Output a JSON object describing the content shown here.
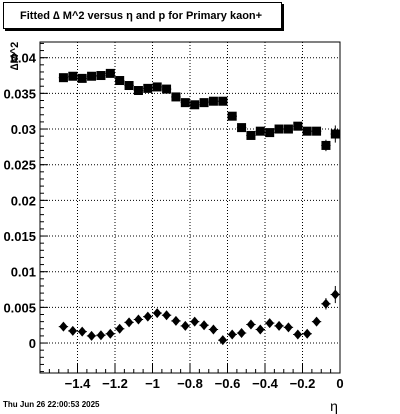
{
  "title": "Fitted ∆ M^2 versus η and p for Primary kaon+",
  "footer": "Thu Jun 26 22:00:53 2025",
  "chart_data": {
    "type": "scatter",
    "title": "Fitted ∆ M^2 versus η and p for Primary kaon+",
    "xlabel": "η",
    "ylabel": "∆M^2",
    "xlim": [
      -1.6,
      0
    ],
    "ylim": [
      -0.0042,
      0.0422
    ],
    "grid": true,
    "x_ticks": [
      -1.4,
      -1.2,
      -1,
      -0.8,
      -0.6,
      -0.4,
      -0.2,
      0
    ],
    "x_tick_labels": [
      "−1.4",
      "−1.2",
      "−1",
      "−0.8",
      "−0.6",
      "−0.4",
      "−0.2",
      "0"
    ],
    "y_ticks": [
      0,
      0.005,
      0.01,
      0.015,
      0.02,
      0.025,
      0.03,
      0.035,
      0.04
    ],
    "y_tick_labels": [
      "0",
      "0.005",
      "0.01",
      "0.015",
      "0.02",
      "0.025",
      "0.03",
      "0.035",
      "0.04"
    ],
    "series": [
      {
        "marker": "square",
        "color": "#000000",
        "x": [
          -1.475,
          -1.425,
          -1.375,
          -1.325,
          -1.275,
          -1.225,
          -1.175,
          -1.125,
          -1.075,
          -1.025,
          -0.975,
          -0.925,
          -0.875,
          -0.825,
          -0.775,
          -0.725,
          -0.675,
          -0.625,
          -0.575,
          -0.525,
          -0.475,
          -0.425,
          -0.375,
          -0.325,
          -0.275,
          -0.225,
          -0.175,
          -0.125,
          -0.075,
          -0.025
        ],
        "y": [
          0.0372,
          0.0374,
          0.0371,
          0.0374,
          0.0375,
          0.0378,
          0.0368,
          0.0361,
          0.0354,
          0.0357,
          0.0359,
          0.0356,
          0.0345,
          0.0337,
          0.0334,
          0.0337,
          0.0339,
          0.0339,
          0.0318,
          0.0302,
          0.0291,
          0.0297,
          0.0295,
          0.03,
          0.03,
          0.0304,
          0.0297,
          0.0297,
          0.0277,
          0.0293
        ],
        "yerr": [
          0.0004,
          0.0004,
          0.0004,
          0.0004,
          0.0004,
          0.0004,
          0.0004,
          0.0004,
          0.0004,
          0.0004,
          0.0004,
          0.0004,
          0.0004,
          0.0004,
          0.0004,
          0.0004,
          0.0004,
          0.0004,
          0.0004,
          0.0004,
          0.0004,
          0.0004,
          0.0004,
          0.0004,
          0.0004,
          0.0004,
          0.0004,
          0.0004,
          0.0008,
          0.0012
        ]
      },
      {
        "marker": "diamond",
        "color": "#000000",
        "x": [
          -1.475,
          -1.425,
          -1.375,
          -1.325,
          -1.275,
          -1.225,
          -1.175,
          -1.125,
          -1.075,
          -1.025,
          -0.975,
          -0.925,
          -0.875,
          -0.825,
          -0.775,
          -0.725,
          -0.675,
          -0.625,
          -0.575,
          -0.525,
          -0.475,
          -0.425,
          -0.375,
          -0.325,
          -0.275,
          -0.225,
          -0.175,
          -0.125,
          -0.075,
          -0.025
        ],
        "y": [
          0.0023,
          0.0017,
          0.0016,
          0.001,
          0.0011,
          0.0013,
          0.002,
          0.0029,
          0.0033,
          0.0037,
          0.0042,
          0.0039,
          0.0031,
          0.0024,
          0.003,
          0.0025,
          0.0019,
          0.0004,
          0.0012,
          0.0014,
          0.0026,
          0.0019,
          0.0028,
          0.0024,
          0.0022,
          0.0012,
          0.0013,
          0.003,
          0.0055,
          0.0068
        ],
        "yerr": [
          0.0004,
          0.0004,
          0.0004,
          0.0004,
          0.0004,
          0.0004,
          0.0004,
          0.0004,
          0.0004,
          0.0004,
          0.0004,
          0.0004,
          0.0004,
          0.0004,
          0.0004,
          0.0004,
          0.0004,
          0.0004,
          0.0004,
          0.0004,
          0.0004,
          0.0004,
          0.0004,
          0.0004,
          0.0004,
          0.0004,
          0.0004,
          0.0004,
          0.0008,
          0.0012
        ]
      }
    ]
  }
}
